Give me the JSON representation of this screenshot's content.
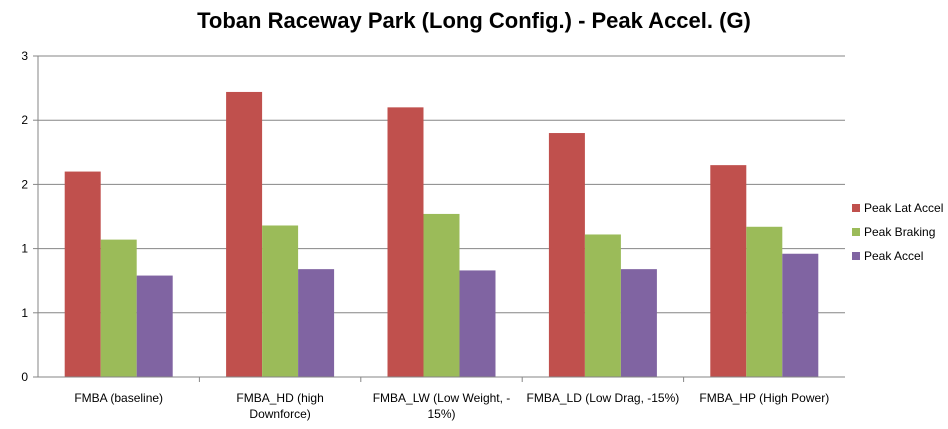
{
  "chart_data": {
    "type": "bar",
    "title": "Toban Raceway Park (Long Config.) - Peak Accel. (G)",
    "categories": [
      "FMBA (baseline)",
      "FMBA_HD (high Downforce)",
      "FMBA_LW (Low Weight, -15%)",
      "FMBA_LD (Low Drag, -15%)",
      "FMBA_HP (High Power)"
    ],
    "category_label_lines": [
      [
        "FMBA (baseline)"
      ],
      [
        "FMBA_HD (high",
        "Downforce)"
      ],
      [
        "FMBA_LW (Low Weight, -",
        "15%)"
      ],
      [
        "FMBA_LD (Low Drag, -15%)"
      ],
      [
        "FMBA_HP (High Power)"
      ]
    ],
    "series": [
      {
        "name": "Peak Lat Accel",
        "color": "#C0504D",
        "values": [
          1.6,
          2.22,
          2.1,
          1.9,
          1.65
        ]
      },
      {
        "name": "Peak Braking",
        "color": "#9BBB59",
        "values": [
          1.07,
          1.18,
          1.27,
          1.11,
          1.17
        ]
      },
      {
        "name": "Peak Accel",
        "color": "#8064A2",
        "values": [
          0.79,
          0.84,
          0.83,
          0.84,
          0.96
        ]
      }
    ],
    "ylim": [
      0,
      2.5
    ],
    "ytick_values": [
      0,
      0.5,
      1.0,
      1.5,
      2.0,
      2.5
    ],
    "ytick_labels": [
      "0",
      "1",
      "1",
      "2",
      "2",
      "3"
    ],
    "xlabel": "",
    "ylabel": "",
    "grid": true,
    "legend": "right"
  }
}
